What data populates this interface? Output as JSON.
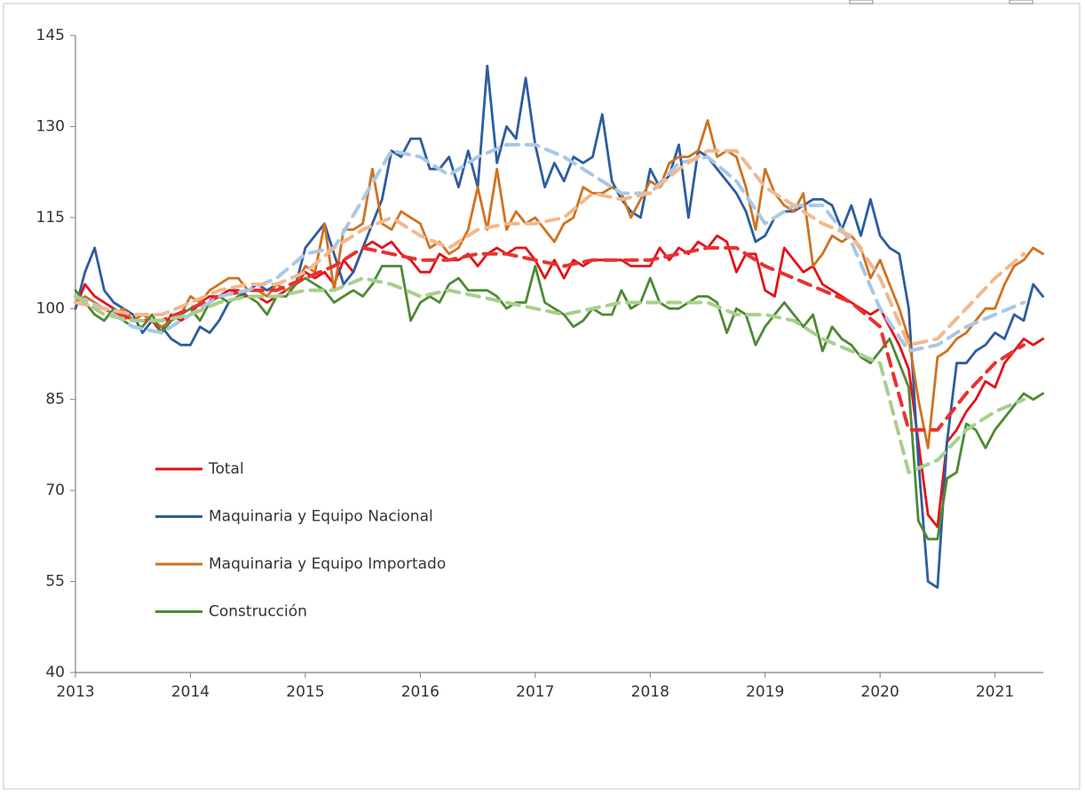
{
  "chart_data": {
    "type": "line",
    "x": [
      2013,
      2013.083,
      2013.167,
      2013.25,
      2013.333,
      2013.417,
      2013.5,
      2013.583,
      2013.667,
      2013.75,
      2013.833,
      2013.917,
      2014,
      2014.083,
      2014.167,
      2014.25,
      2014.333,
      2014.417,
      2014.5,
      2014.583,
      2014.667,
      2014.75,
      2014.833,
      2014.917,
      2015,
      2015.083,
      2015.167,
      2015.25,
      2015.333,
      2015.417,
      2015.5,
      2015.583,
      2015.667,
      2015.75,
      2015.833,
      2015.917,
      2016,
      2016.083,
      2016.167,
      2016.25,
      2016.333,
      2016.417,
      2016.5,
      2016.583,
      2016.667,
      2016.75,
      2016.833,
      2016.917,
      2017,
      2017.083,
      2017.167,
      2017.25,
      2017.333,
      2017.417,
      2017.5,
      2017.583,
      2017.667,
      2017.75,
      2017.833,
      2017.917,
      2018,
      2018.083,
      2018.167,
      2018.25,
      2018.333,
      2018.417,
      2018.5,
      2018.583,
      2018.667,
      2018.75,
      2018.833,
      2018.917,
      2019,
      2019.083,
      2019.167,
      2019.25,
      2019.333,
      2019.417,
      2019.5,
      2019.583,
      2019.667,
      2019.75,
      2019.833,
      2019.917,
      2020,
      2020.083,
      2020.167,
      2020.25,
      2020.333,
      2020.417,
      2020.5,
      2020.583,
      2020.667,
      2020.75,
      2020.833,
      2020.917,
      2021,
      2021.083,
      2021.167,
      2021.25,
      2021.333,
      2021.417
    ],
    "trend_x": [
      2013,
      2013.25,
      2013.5,
      2013.75,
      2014,
      2014.25,
      2014.5,
      2014.75,
      2015,
      2015.25,
      2015.5,
      2015.75,
      2016,
      2016.25,
      2016.5,
      2016.75,
      2017,
      2017.25,
      2017.5,
      2017.75,
      2018,
      2018.25,
      2018.5,
      2018.75,
      2019,
      2019.25,
      2019.5,
      2019.75,
      2020,
      2020.25,
      2020.5,
      2020.75,
      2021,
      2021.25
    ],
    "series": [
      {
        "name": "Total",
        "color": "#e3121b",
        "trend_color": "#e8322e",
        "values": [
          100,
          104,
          102,
          101,
          100,
          99,
          98,
          99,
          98,
          96,
          99,
          98,
          99,
          101,
          102,
          102,
          103,
          103,
          102,
          102,
          101,
          102,
          103,
          104,
          106,
          105,
          106,
          104,
          108,
          106,
          110,
          111,
          110,
          111,
          109,
          108,
          106,
          106,
          109,
          108,
          108,
          109,
          107,
          109,
          110,
          109,
          110,
          110,
          108,
          105,
          108,
          105,
          108,
          107,
          108,
          108,
          108,
          108,
          107,
          107,
          107,
          110,
          108,
          110,
          109,
          111,
          110,
          112,
          111,
          106,
          109,
          109,
          103,
          102,
          110,
          108,
          106,
          107,
          104,
          103,
          102,
          101,
          100,
          99,
          100,
          97,
          94,
          90,
          78,
          66,
          64,
          78,
          80,
          83,
          85,
          88,
          87,
          91,
          93,
          95,
          94,
          95
        ],
        "trend": [
          101,
          100,
          98,
          98,
          100,
          102,
          103,
          103,
          105,
          107,
          110,
          109,
          108,
          108,
          109,
          109,
          108,
          107,
          108,
          108,
          108,
          109,
          110,
          110,
          107,
          105,
          103,
          101,
          97,
          80,
          80,
          86,
          91,
          94
        ]
      },
      {
        "name": "Maquinaria y Equipo Nacional",
        "color": "#2e5c9e",
        "trend_color": "#a9c7e6",
        "values": [
          100,
          106,
          110,
          103,
          101,
          100,
          99,
          96,
          98,
          97,
          95,
          94,
          94,
          97,
          96,
          98,
          101,
          102,
          103,
          104,
          103,
          104,
          103,
          104,
          110,
          112,
          114,
          109,
          104,
          106,
          110,
          114,
          118,
          126,
          125,
          128,
          128,
          123,
          123,
          125,
          120,
          126,
          120,
          140,
          124,
          130,
          128,
          138,
          127,
          120,
          124,
          121,
          125,
          124,
          125,
          132,
          121,
          118,
          116,
          115,
          123,
          120,
          122,
          127,
          115,
          126,
          125,
          123,
          121,
          119,
          116,
          111,
          112,
          115,
          116,
          116,
          117,
          118,
          118,
          117,
          113,
          117,
          112,
          118,
          112,
          110,
          109,
          100,
          75,
          55,
          54,
          78,
          91,
          91,
          93,
          94,
          96,
          95,
          99,
          98,
          104,
          102
        ],
        "trend": [
          102,
          100,
          97,
          96,
          99,
          102,
          103,
          105,
          109,
          110,
          118,
          126,
          125,
          122,
          125,
          127,
          127,
          125,
          122,
          119,
          119,
          124,
          125,
          121,
          114,
          117,
          117,
          111,
          100,
          93,
          94,
          97,
          99,
          101
        ]
      },
      {
        "name": "Maquinaria y Equipo Importado",
        "color": "#d0721f",
        "trend_color": "#f2b88e",
        "values": [
          101,
          102,
          101,
          100,
          99,
          100,
          98,
          99,
          98,
          97,
          98,
          99,
          102,
          101,
          103,
          104,
          105,
          105,
          103,
          103,
          102,
          104,
          103,
          104,
          107,
          106,
          114,
          103,
          113,
          113,
          114,
          123,
          114,
          113,
          116,
          115,
          114,
          110,
          111,
          109,
          110,
          113,
          120,
          113,
          123,
          113,
          116,
          114,
          115,
          113,
          111,
          114,
          115,
          120,
          119,
          119,
          120,
          119,
          115,
          118,
          121,
          120,
          124,
          125,
          125,
          126,
          131,
          125,
          126,
          125,
          120,
          113,
          123,
          119,
          117,
          116,
          119,
          107,
          109,
          112,
          111,
          112,
          110,
          105,
          108,
          104,
          100,
          95,
          85,
          77,
          92,
          93,
          95,
          96,
          98,
          100,
          100,
          104,
          107,
          108,
          110,
          109
        ],
        "trend": [
          101,
          100,
          99,
          99,
          101,
          103,
          104,
          104,
          106,
          110,
          113,
          115,
          112,
          110,
          113,
          114,
          114,
          115,
          119,
          118,
          119,
          123,
          126,
          126,
          120,
          117,
          114,
          112,
          105,
          94,
          95,
          100,
          105,
          109
        ]
      },
      {
        "name": "Construcción",
        "color": "#4d8a32",
        "trend_color": "#a8cf8c",
        "values": [
          103,
          101,
          99,
          98,
          100,
          98,
          97,
          97,
          99,
          96,
          98,
          99,
          100,
          98,
          101,
          102,
          101,
          102,
          102,
          101,
          99,
          102,
          102,
          104,
          105,
          104,
          103,
          101,
          102,
          103,
          102,
          104,
          107,
          107,
          107,
          98,
          101,
          102,
          101,
          104,
          105,
          103,
          103,
          103,
          102,
          100,
          101,
          101,
          107,
          101,
          100,
          99,
          97,
          98,
          100,
          99,
          99,
          103,
          100,
          101,
          105,
          101,
          100,
          100,
          101,
          102,
          102,
          101,
          96,
          100,
          99,
          94,
          97,
          99,
          101,
          99,
          97,
          99,
          93,
          97,
          95,
          94,
          92,
          91,
          93,
          95,
          91,
          87,
          65,
          62,
          62,
          72,
          73,
          81,
          80,
          77,
          80,
          82,
          84,
          86,
          85,
          86
        ],
        "trend": [
          102,
          99,
          98,
          98,
          99,
          101,
          102,
          102,
          103,
          103,
          105,
          104,
          102,
          103,
          102,
          101,
          100,
          99,
          100,
          101,
          101,
          101,
          101,
          99,
          99,
          98,
          95,
          93,
          91,
          73,
          75,
          80,
          83,
          85
        ]
      }
    ],
    "xlim": [
      2013,
      2021.42
    ],
    "xticks": [
      2013,
      2014,
      2015,
      2016,
      2017,
      2018,
      2019,
      2020,
      2021
    ],
    "ylim": [
      40,
      145
    ],
    "yticks": [
      40,
      55,
      70,
      85,
      100,
      115,
      130,
      145
    ],
    "grid": false,
    "legend": "left"
  }
}
